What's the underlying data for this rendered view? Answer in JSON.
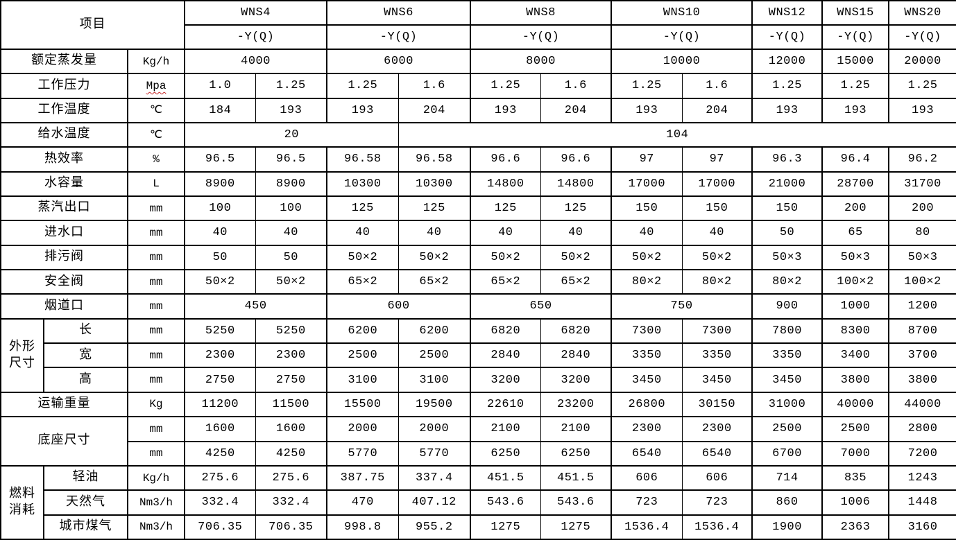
{
  "colors": {
    "background": "#ffffff",
    "grid_line": "#000000",
    "text": "#000000",
    "spellcheck_underline": "#c62828"
  },
  "table": {
    "corner": "项目",
    "models": [
      {
        "name": "WNS4",
        "variant": "-Y(Q)",
        "colspan": 2
      },
      {
        "name": "WNS6",
        "variant": "-Y(Q)",
        "colspan": 2
      },
      {
        "name": "WNS8",
        "variant": "-Y(Q)",
        "colspan": 2
      },
      {
        "name": "WNS10",
        "variant": "-Y(Q)",
        "colspan": 2
      },
      {
        "name": "WNS12",
        "variant": "-Y(Q)",
        "colspan": 1
      },
      {
        "name": "WNS15",
        "variant": "-Y(Q)",
        "colspan": 1
      },
      {
        "name": "WNS20",
        "variant": "-Y(Q)",
        "colspan": 1
      }
    ],
    "rows": [
      {
        "label": "额定蒸发量",
        "label_colspan": 2,
        "unit": "Kg/h",
        "cells": [
          {
            "v": "4000",
            "colspan": 2
          },
          {
            "v": "6000",
            "colspan": 2
          },
          {
            "v": "8000",
            "colspan": 2
          },
          {
            "v": "10000",
            "colspan": 2
          },
          {
            "v": "12000"
          },
          {
            "v": "15000"
          },
          {
            "v": "20000"
          }
        ]
      },
      {
        "label": "工作压力",
        "label_colspan": 2,
        "unit": "Mpa",
        "unit_squiggle": true,
        "cells": [
          {
            "v": "1.0"
          },
          {
            "v": "1.25"
          },
          {
            "v": "1.25"
          },
          {
            "v": "1.6"
          },
          {
            "v": "1.25"
          },
          {
            "v": "1.6"
          },
          {
            "v": "1.25"
          },
          {
            "v": "1.6"
          },
          {
            "v": "1.25"
          },
          {
            "v": "1.25"
          },
          {
            "v": "1.25"
          }
        ]
      },
      {
        "label": "工作温度",
        "label_colspan": 2,
        "unit": "℃",
        "cells": [
          {
            "v": "184"
          },
          {
            "v": "193"
          },
          {
            "v": "193"
          },
          {
            "v": "204"
          },
          {
            "v": "193"
          },
          {
            "v": "204"
          },
          {
            "v": "193"
          },
          {
            "v": "204"
          },
          {
            "v": "193"
          },
          {
            "v": "193"
          },
          {
            "v": "193"
          }
        ]
      },
      {
        "label": "给水温度",
        "label_colspan": 2,
        "unit": "℃",
        "cells": [
          {
            "v": "20",
            "colspan": 3
          },
          {
            "v": "104",
            "colspan": 8
          }
        ]
      },
      {
        "label": "热效率",
        "label_colspan": 2,
        "unit": "%",
        "cells": [
          {
            "v": "96.5"
          },
          {
            "v": "96.5"
          },
          {
            "v": "96.58"
          },
          {
            "v": "96.58"
          },
          {
            "v": "96.6"
          },
          {
            "v": "96.6"
          },
          {
            "v": "97"
          },
          {
            "v": "97"
          },
          {
            "v": "96.3"
          },
          {
            "v": "96.4"
          },
          {
            "v": "96.2"
          }
        ]
      },
      {
        "label": "水容量",
        "label_colspan": 2,
        "unit": "L",
        "cells": [
          {
            "v": "8900"
          },
          {
            "v": "8900"
          },
          {
            "v": "10300"
          },
          {
            "v": "10300"
          },
          {
            "v": "14800"
          },
          {
            "v": "14800"
          },
          {
            "v": "17000"
          },
          {
            "v": "17000"
          },
          {
            "v": "21000"
          },
          {
            "v": "28700"
          },
          {
            "v": "31700"
          }
        ]
      },
      {
        "label": "蒸汽出口",
        "label_colspan": 2,
        "unit": "mm",
        "cells": [
          {
            "v": "100"
          },
          {
            "v": "100"
          },
          {
            "v": "125"
          },
          {
            "v": "125"
          },
          {
            "v": "125"
          },
          {
            "v": "125"
          },
          {
            "v": "150"
          },
          {
            "v": "150"
          },
          {
            "v": "150"
          },
          {
            "v": "200"
          },
          {
            "v": "200"
          }
        ]
      },
      {
        "label": "进水口",
        "label_colspan": 2,
        "unit": "mm",
        "cells": [
          {
            "v": "40"
          },
          {
            "v": "40"
          },
          {
            "v": "40"
          },
          {
            "v": "40"
          },
          {
            "v": "40"
          },
          {
            "v": "40"
          },
          {
            "v": "40"
          },
          {
            "v": "40"
          },
          {
            "v": "50"
          },
          {
            "v": "65"
          },
          {
            "v": "80"
          }
        ]
      },
      {
        "label": "排污阀",
        "label_colspan": 2,
        "unit": "mm",
        "cells": [
          {
            "v": "50"
          },
          {
            "v": "50"
          },
          {
            "v": "50×2"
          },
          {
            "v": "50×2"
          },
          {
            "v": "50×2"
          },
          {
            "v": "50×2"
          },
          {
            "v": "50×2"
          },
          {
            "v": "50×2"
          },
          {
            "v": "50×3"
          },
          {
            "v": "50×3"
          },
          {
            "v": "50×3"
          }
        ]
      },
      {
        "label": "安全阀",
        "label_colspan": 2,
        "unit": "mm",
        "cells": [
          {
            "v": "50×2"
          },
          {
            "v": "50×2"
          },
          {
            "v": "65×2"
          },
          {
            "v": "65×2"
          },
          {
            "v": "65×2"
          },
          {
            "v": "65×2"
          },
          {
            "v": "80×2"
          },
          {
            "v": "80×2"
          },
          {
            "v": "80×2"
          },
          {
            "v": "100×2"
          },
          {
            "v": "100×2"
          }
        ]
      },
      {
        "label": "烟道口",
        "label_colspan": 2,
        "unit": "mm",
        "cells": [
          {
            "v": "450",
            "colspan": 2
          },
          {
            "v": "600",
            "colspan": 2
          },
          {
            "v": "650",
            "colspan": 2
          },
          {
            "v": "750",
            "colspan": 2
          },
          {
            "v": "900"
          },
          {
            "v": "1000"
          },
          {
            "v": "1200"
          }
        ]
      },
      {
        "group": {
          "text": "外形尺寸",
          "rowspan": 3
        },
        "label": "长",
        "unit": "mm",
        "cells": [
          {
            "v": "5250"
          },
          {
            "v": "5250"
          },
          {
            "v": "6200"
          },
          {
            "v": "6200"
          },
          {
            "v": "6820"
          },
          {
            "v": "6820"
          },
          {
            "v": "7300"
          },
          {
            "v": "7300"
          },
          {
            "v": "7800"
          },
          {
            "v": "8300"
          },
          {
            "v": "8700"
          }
        ]
      },
      {
        "label": "宽",
        "unit": "mm",
        "cells": [
          {
            "v": "2300"
          },
          {
            "v": "2300"
          },
          {
            "v": "2500"
          },
          {
            "v": "2500"
          },
          {
            "v": "2840"
          },
          {
            "v": "2840"
          },
          {
            "v": "3350"
          },
          {
            "v": "3350"
          },
          {
            "v": "3350"
          },
          {
            "v": "3400"
          },
          {
            "v": "3700"
          }
        ]
      },
      {
        "label": "高",
        "unit": "mm",
        "cells": [
          {
            "v": "2750"
          },
          {
            "v": "2750"
          },
          {
            "v": "3100"
          },
          {
            "v": "3100"
          },
          {
            "v": "3200"
          },
          {
            "v": "3200"
          },
          {
            "v": "3450"
          },
          {
            "v": "3450"
          },
          {
            "v": "3450"
          },
          {
            "v": "3800"
          },
          {
            "v": "3800"
          }
        ]
      },
      {
        "label": "运输重量",
        "label_colspan": 2,
        "unit": "Kg",
        "cells": [
          {
            "v": "11200"
          },
          {
            "v": "11500"
          },
          {
            "v": "15500"
          },
          {
            "v": "19500"
          },
          {
            "v": "22610"
          },
          {
            "v": "23200"
          },
          {
            "v": "26800"
          },
          {
            "v": "30150"
          },
          {
            "v": "31000"
          },
          {
            "v": "40000"
          },
          {
            "v": "44000"
          }
        ]
      },
      {
        "label": "底座尺寸",
        "label_colspan": 2,
        "label_rowspan": 2,
        "unit": "mm",
        "cells": [
          {
            "v": "1600"
          },
          {
            "v": "1600"
          },
          {
            "v": "2000"
          },
          {
            "v": "2000"
          },
          {
            "v": "2100"
          },
          {
            "v": "2100"
          },
          {
            "v": "2300"
          },
          {
            "v": "2300"
          },
          {
            "v": "2500"
          },
          {
            "v": "2500"
          },
          {
            "v": "2800"
          }
        ]
      },
      {
        "label_skip": true,
        "unit": "mm",
        "cells": [
          {
            "v": "4250"
          },
          {
            "v": "4250"
          },
          {
            "v": "5770"
          },
          {
            "v": "5770"
          },
          {
            "v": "6250"
          },
          {
            "v": "6250"
          },
          {
            "v": "6540"
          },
          {
            "v": "6540"
          },
          {
            "v": "6700"
          },
          {
            "v": "7000"
          },
          {
            "v": "7200"
          }
        ]
      },
      {
        "group": {
          "text": "燃料消耗",
          "rowspan": 3
        },
        "label": "轻油",
        "unit": "Kg/h",
        "cells": [
          {
            "v": "275.6"
          },
          {
            "v": "275.6"
          },
          {
            "v": "387.75"
          },
          {
            "v": "337.4"
          },
          {
            "v": "451.5"
          },
          {
            "v": "451.5"
          },
          {
            "v": "606"
          },
          {
            "v": "606"
          },
          {
            "v": "714"
          },
          {
            "v": "835"
          },
          {
            "v": "1243"
          }
        ]
      },
      {
        "label": "天然气",
        "unit": "Nm3/h",
        "cells": [
          {
            "v": "332.4"
          },
          {
            "v": "332.4"
          },
          {
            "v": "470"
          },
          {
            "v": "407.12"
          },
          {
            "v": "543.6"
          },
          {
            "v": "543.6"
          },
          {
            "v": "723"
          },
          {
            "v": "723"
          },
          {
            "v": "860"
          },
          {
            "v": "1006"
          },
          {
            "v": "1448"
          }
        ]
      },
      {
        "label": "城市煤气",
        "unit": "Nm3/h",
        "cells": [
          {
            "v": "706.35"
          },
          {
            "v": "706.35"
          },
          {
            "v": "998.8"
          },
          {
            "v": "955.2"
          },
          {
            "v": "1275"
          },
          {
            "v": "1275"
          },
          {
            "v": "1536.4"
          },
          {
            "v": "1536.4"
          },
          {
            "v": "1900"
          },
          {
            "v": "2363"
          },
          {
            "v": "3160"
          }
        ]
      }
    ]
  }
}
